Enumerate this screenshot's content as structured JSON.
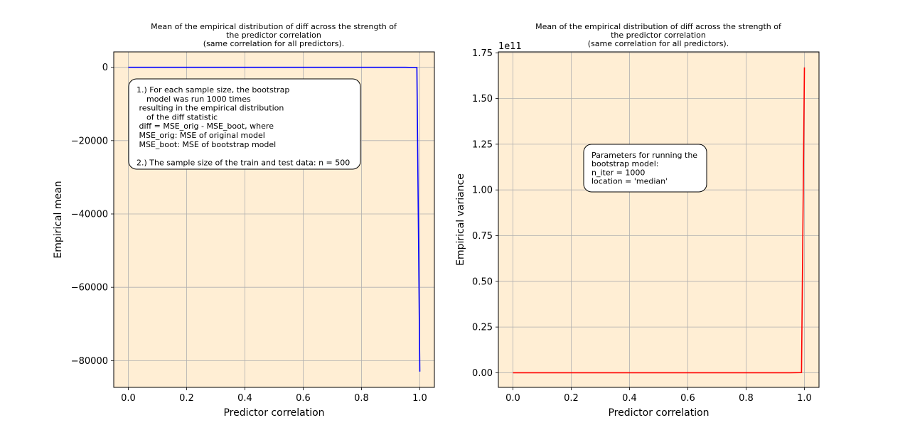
{
  "chart_data": [
    {
      "type": "line",
      "title": [
        "Mean of the empirical distribution of diff across the strength of",
        "the predictor correlation",
        "(same correlation for all predictors)."
      ],
      "xlabel": "Predictor correlation",
      "ylabel": "Empirical mean",
      "xlim": [
        -0.05,
        1.05
      ],
      "ylim": [
        -87300,
        4200
      ],
      "xticks": [
        0.0,
        0.2,
        0.4,
        0.6,
        0.8,
        1.0
      ],
      "xtick_labels": [
        "0.0",
        "0.2",
        "0.4",
        "0.6",
        "0.8",
        "1.0"
      ],
      "yticks": [
        0,
        -20000,
        -40000,
        -60000,
        -80000
      ],
      "ytick_labels": [
        "0",
        "−20000",
        "−40000",
        "−60000",
        "−80000"
      ],
      "grid": true,
      "background": "#ffeed4",
      "series": [
        {
          "color": "#0000ff",
          "x": [
            0.0,
            0.1,
            0.2,
            0.3,
            0.4,
            0.5,
            0.6,
            0.7,
            0.8,
            0.9,
            0.95,
            0.99,
            1.0
          ],
          "y": [
            0,
            0,
            0,
            0,
            0,
            0,
            0,
            0,
            0,
            0,
            -5,
            -60,
            -83000
          ]
        }
      ],
      "annotation": {
        "lines": [
          "1.) For each sample size, the bootstrap",
          "    model was run 1000 times",
          " resulting in the empirical distribution",
          "    of the diff statistic",
          " diff = MSE_orig - MSE_boot, where",
          " MSE_orig: MSE of original model",
          " MSE_boot: MSE of bootstrap model",
          "",
          "2.) The sample size of the train and test data: n = 500"
        ]
      }
    },
    {
      "type": "line",
      "title": [
        "Mean of the empirical distribution of diff across the strength of",
        "the predictor correlation",
        "(same correlation for all predictors)."
      ],
      "xlabel": "Predictor correlation",
      "ylabel": "Empirical variance",
      "offset_text": "1e11",
      "xlim": [
        -0.05,
        1.05
      ],
      "ylim": [
        -0.08,
        1.755
      ],
      "xticks": [
        0.0,
        0.2,
        0.4,
        0.6,
        0.8,
        1.0
      ],
      "xtick_labels": [
        "0.0",
        "0.2",
        "0.4",
        "0.6",
        "0.8",
        "1.0"
      ],
      "yticks": [
        0.0,
        0.25,
        0.5,
        0.75,
        1.0,
        1.25,
        1.5,
        1.75
      ],
      "ytick_labels": [
        "0.00",
        "0.25",
        "0.50",
        "0.75",
        "1.00",
        "1.25",
        "1.50",
        "1.75"
      ],
      "grid": true,
      "background": "#ffeed4",
      "series": [
        {
          "color": "#ff0000",
          "x": [
            0.0,
            0.1,
            0.2,
            0.3,
            0.4,
            0.5,
            0.6,
            0.7,
            0.8,
            0.9,
            0.95,
            0.99,
            1.0
          ],
          "y": [
            0,
            0,
            0,
            0,
            0,
            0,
            0,
            0,
            0,
            0,
            0,
            0.001,
            1.67
          ]
        }
      ],
      "annotation": {
        "lines": [
          "Parameters for running the",
          "bootstrap model:",
          "n_iter = 1000",
          "location = 'median'"
        ]
      }
    }
  ]
}
